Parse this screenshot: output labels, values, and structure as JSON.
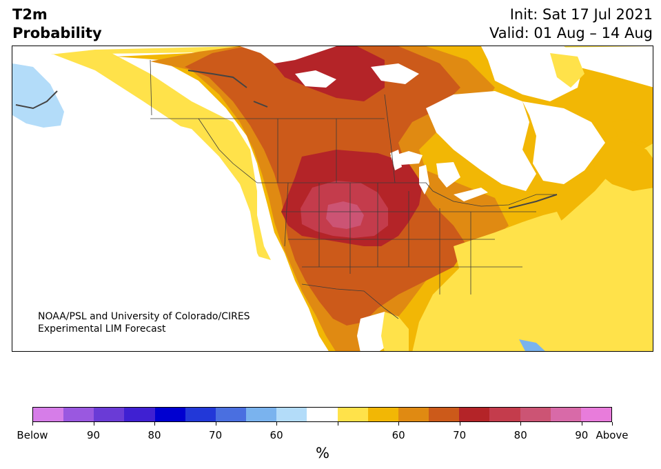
{
  "header": {
    "title_line1": "T2m",
    "title_line2": "Probability",
    "init_text": "Init: Sat 17 Jul 2021",
    "valid_text": "Valid: 01 Aug – 14 Aug"
  },
  "map": {
    "region": "North America",
    "credit_line1": "NOAA/PSL and University of Colorado/CIRES",
    "credit_line2": "Experimental LIM Forecast"
  },
  "colorbar": {
    "colors": [
      "#d67de8",
      "#9a58e0",
      "#6a3bd6",
      "#3f20d2",
      "#0000d0",
      "#2238d8",
      "#4a6fe0",
      "#7ab3ee",
      "#b3dcf9",
      "#ffffff",
      "#ffe24a",
      "#f2b705",
      "#e08a12",
      "#cc5a1a",
      "#b42428",
      "#c43c4c",
      "#cc5474",
      "#d86aa8",
      "#e87cdb"
    ],
    "tick_labels": [
      "Below",
      "90",
      "80",
      "70",
      "60",
      "",
      "60",
      "70",
      "80",
      "90",
      "Above"
    ],
    "units": "%"
  },
  "palette": {
    "land_boundary": "#3a3a3a",
    "white": "#ffffff",
    "light_blue": "#b3dcf9",
    "yellow": "#ffe24a",
    "gold": "#f2b705",
    "orange": "#e08a12",
    "dark_orange": "#cc5a1a",
    "red": "#b42428",
    "crimson": "#c43c4c",
    "pink": "#cc5474"
  }
}
